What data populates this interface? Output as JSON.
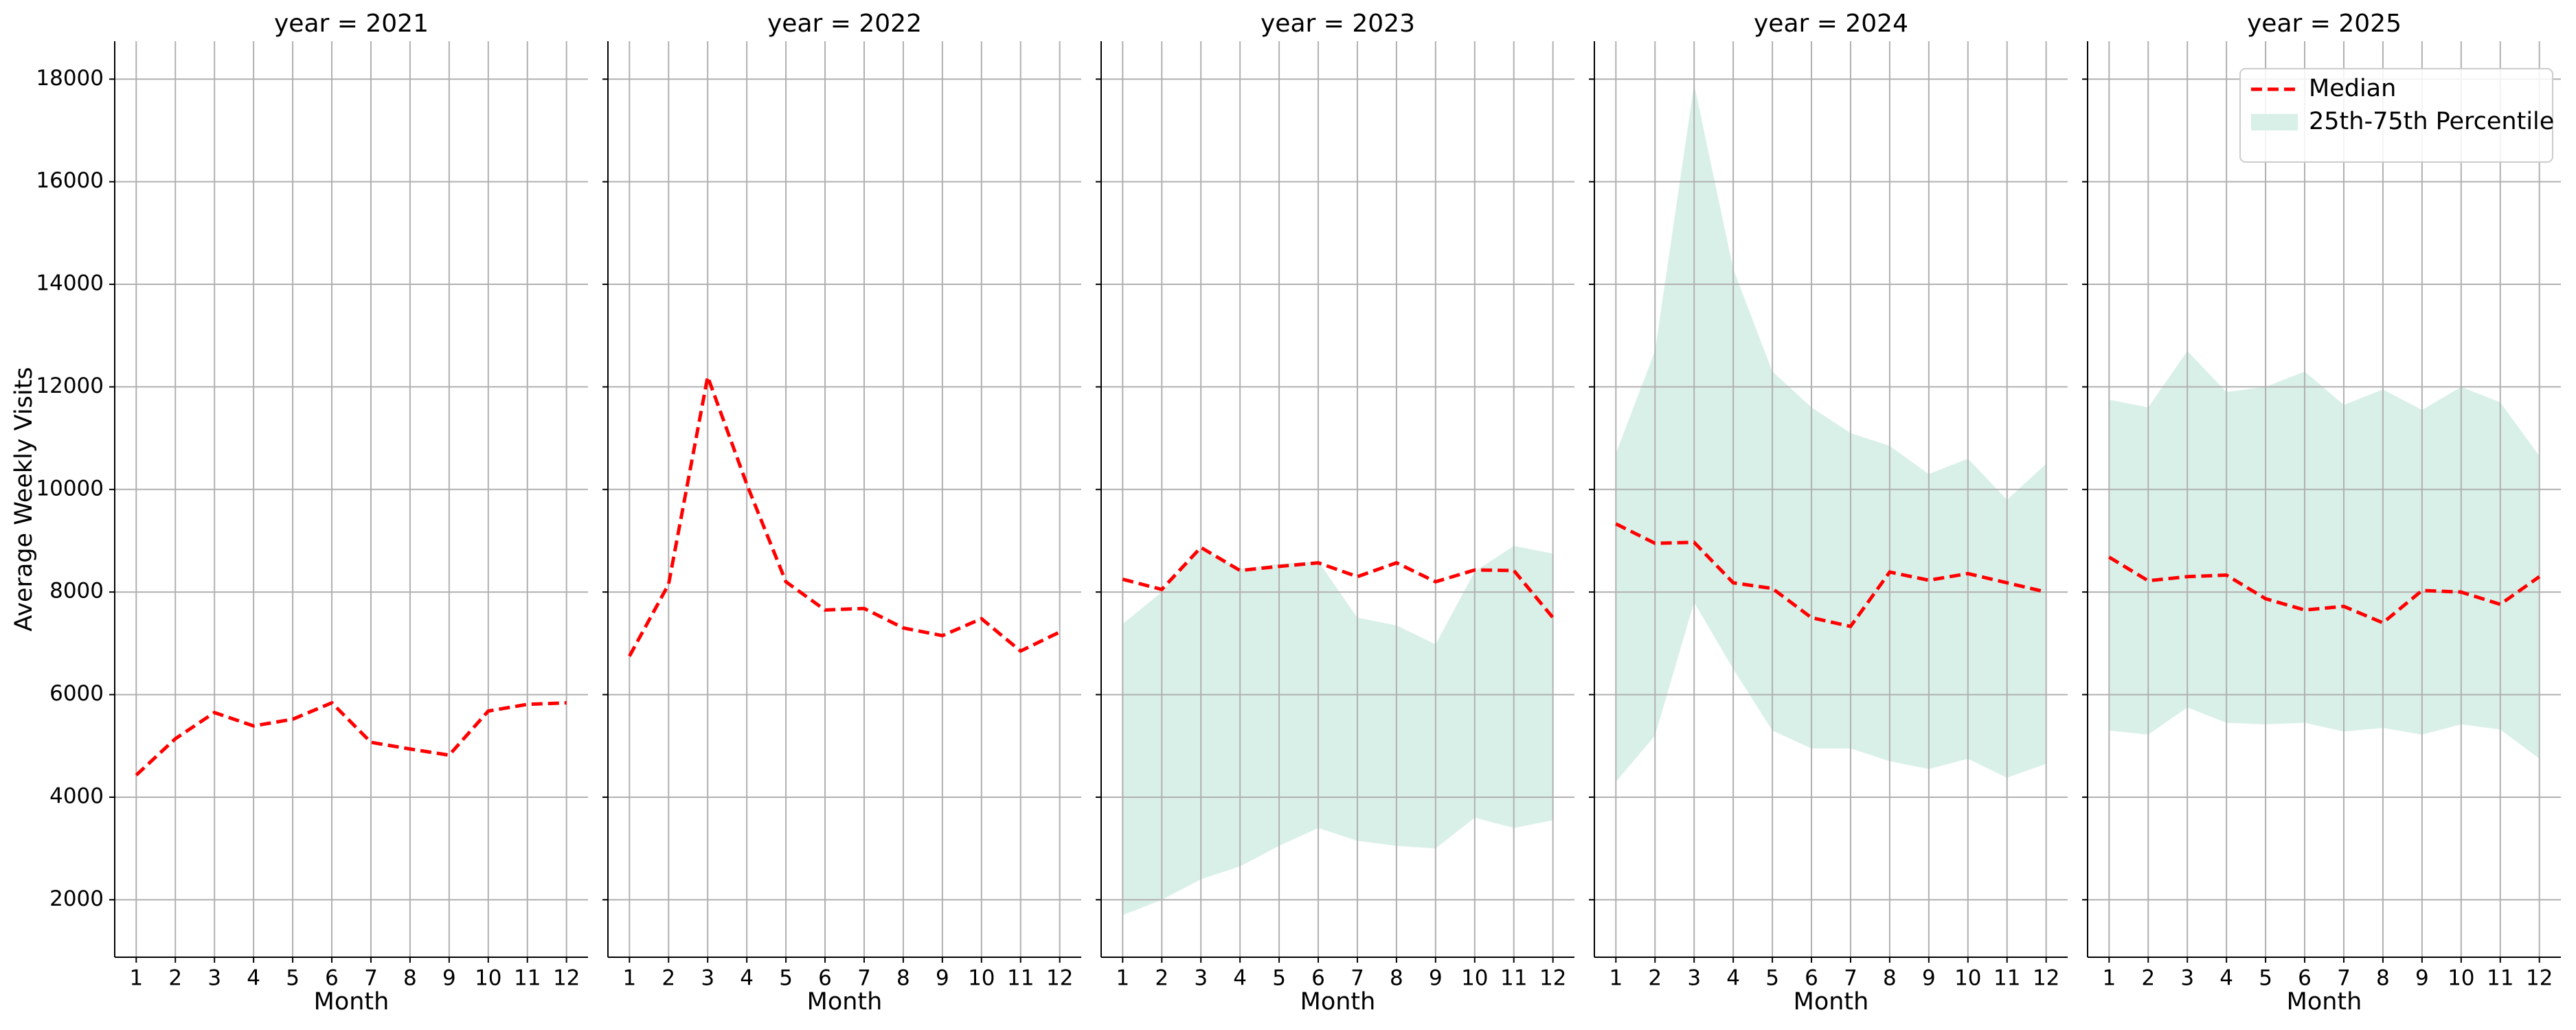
{
  "chart_data": [
    {
      "type": "line",
      "title": "year = 2021",
      "xlabel": "Month",
      "ylabel": "Average Weekly Visits",
      "x": [
        1,
        2,
        3,
        4,
        5,
        6,
        7,
        8,
        9,
        10,
        11,
        12
      ],
      "xlim": [
        0.45,
        12.55
      ],
      "xticks": [
        1,
        2,
        3,
        4,
        5,
        6,
        7,
        8,
        9,
        10,
        11,
        12
      ],
      "ylim": [
        880,
        18740
      ],
      "yticks": [
        2000,
        4000,
        6000,
        8000,
        10000,
        12000,
        14000,
        16000,
        18000
      ],
      "grid": true,
      "series": [
        {
          "color": "#ff0000",
          "values": [
            4430,
            5140,
            5650,
            5390,
            5520,
            5840,
            5070,
            4940,
            4820,
            5680,
            5810,
            5840
          ]
        }
      ]
    },
    {
      "type": "line",
      "title": "year = 2022",
      "xlabel": "Month",
      "x": [
        1,
        2,
        3,
        4,
        5,
        6,
        7,
        8,
        9,
        10,
        11,
        12
      ],
      "xlim": [
        0.45,
        12.55
      ],
      "xticks": [
        1,
        2,
        3,
        4,
        5,
        6,
        7,
        8,
        9,
        10,
        11,
        12
      ],
      "ylim": [
        880,
        18740
      ],
      "yticks": [
        2000,
        4000,
        6000,
        8000,
        10000,
        12000,
        14000,
        16000,
        18000
      ],
      "grid": true,
      "series": [
        {
          "color": "#ff0000",
          "values": [
            6750,
            8150,
            12200,
            10100,
            8200,
            7650,
            7680,
            7300,
            7150,
            7480,
            6850,
            7220
          ]
        }
      ]
    },
    {
      "type": "line",
      "title": "year = 2023",
      "xlabel": "Month",
      "x": [
        1,
        2,
        3,
        4,
        5,
        6,
        7,
        8,
        9,
        10,
        11,
        12
      ],
      "xlim": [
        0.45,
        12.55
      ],
      "xticks": [
        1,
        2,
        3,
        4,
        5,
        6,
        7,
        8,
        9,
        10,
        11,
        12
      ],
      "ylim": [
        880,
        18740
      ],
      "yticks": [
        2000,
        4000,
        6000,
        8000,
        10000,
        12000,
        14000,
        16000,
        18000
      ],
      "grid": true,
      "series": [
        {
          "color": "#ff0000",
          "values": [
            8250,
            8050,
            8870,
            8420,
            8500,
            8570,
            8300,
            8570,
            8200,
            8430,
            8420,
            7500
          ]
        },
        {
          "color": "#d9f0e8",
          "upper": [
            7380,
            8000,
            8850,
            8450,
            8550,
            8600,
            7500,
            7350,
            6980,
            8400,
            8900,
            8750
          ],
          "lower": [
            1700,
            2000,
            2400,
            2650,
            3050,
            3400,
            3150,
            3050,
            3000,
            3600,
            3400,
            3550
          ]
        }
      ]
    },
    {
      "type": "line",
      "title": "year = 2024",
      "xlabel": "Month",
      "x": [
        1,
        2,
        3,
        4,
        5,
        6,
        7,
        8,
        9,
        10,
        11,
        12
      ],
      "xlim": [
        0.45,
        12.55
      ],
      "xticks": [
        1,
        2,
        3,
        4,
        5,
        6,
        7,
        8,
        9,
        10,
        11,
        12
      ],
      "ylim": [
        880,
        18740
      ],
      "yticks": [
        2000,
        4000,
        6000,
        8000,
        10000,
        12000,
        14000,
        16000,
        18000
      ],
      "grid": true,
      "series": [
        {
          "color": "#ff0000",
          "values": [
            9330,
            8950,
            8970,
            8180,
            8070,
            7500,
            7330,
            8390,
            8230,
            8360,
            8180,
            8000
          ]
        },
        {
          "color": "#d9f0e8",
          "upper": [
            10700,
            12700,
            17900,
            14300,
            12300,
            11600,
            11100,
            10850,
            10300,
            10600,
            9800,
            10500
          ],
          "lower": [
            4300,
            5200,
            7800,
            6500,
            5300,
            4950,
            4950,
            4700,
            4550,
            4750,
            4380,
            4650
          ]
        }
      ]
    },
    {
      "type": "line",
      "title": "year = 2025",
      "xlabel": "Month",
      "x": [
        1,
        2,
        3,
        4,
        5,
        6,
        7,
        8,
        9,
        10,
        11,
        12
      ],
      "xlim": [
        0.45,
        12.55
      ],
      "xticks": [
        1,
        2,
        3,
        4,
        5,
        6,
        7,
        8,
        9,
        10,
        11,
        12
      ],
      "ylim": [
        880,
        18740
      ],
      "yticks": [
        2000,
        4000,
        6000,
        8000,
        10000,
        12000,
        14000,
        16000,
        18000
      ],
      "grid": true,
      "legend": "upper right",
      "series": [
        {
          "name": "Median",
          "color": "#ff0000",
          "values": [
            8680,
            8220,
            8300,
            8330,
            7870,
            7650,
            7720,
            7400,
            8030,
            8000,
            7760,
            8300
          ]
        },
        {
          "name": "25th-75th Percentile",
          "color": "#d9f0e8",
          "upper": [
            11750,
            11600,
            12700,
            11900,
            12000,
            12300,
            11650,
            11950,
            11550,
            12000,
            11700,
            10650
          ],
          "lower": [
            5300,
            5220,
            5750,
            5450,
            5420,
            5450,
            5280,
            5350,
            5220,
            5420,
            5320,
            4750
          ]
        }
      ]
    }
  ]
}
